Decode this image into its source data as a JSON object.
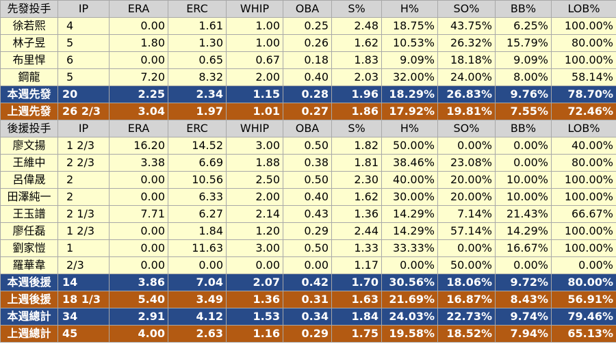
{
  "columns": [
    "IP",
    "ERA",
    "ERC",
    "WHIP",
    "OBA",
    "S%",
    "H%",
    "SO%",
    "BB%",
    "LOB%"
  ],
  "starters": {
    "header": "先發投手",
    "rows": [
      [
        "徐若熙",
        "4",
        "0.00",
        "1.61",
        "1.00",
        "0.25",
        "2.48",
        "18.75%",
        "43.75%",
        "6.25%",
        "100.00%"
      ],
      [
        "林子昱",
        "5",
        "1.80",
        "1.30",
        "1.00",
        "0.26",
        "1.62",
        "10.53%",
        "26.32%",
        "15.79%",
        "80.00%"
      ],
      [
        "布里悍",
        "6",
        "0.00",
        "0.65",
        "0.67",
        "0.18",
        "1.83",
        "9.09%",
        "18.18%",
        "9.09%",
        "100.00%"
      ],
      [
        "鋼龍",
        "5",
        "7.20",
        "8.32",
        "2.00",
        "0.40",
        "2.03",
        "32.00%",
        "24.00%",
        "8.00%",
        "58.14%"
      ]
    ],
    "this_week": [
      "本週先發",
      "20",
      "2.25",
      "2.34",
      "1.15",
      "0.28",
      "1.96",
      "18.29%",
      "26.83%",
      "9.76%",
      "78.70%"
    ],
    "last_week": [
      "上週先發",
      "26 2/3",
      "3.04",
      "1.97",
      "1.01",
      "0.27",
      "1.86",
      "17.92%",
      "19.81%",
      "7.55%",
      "72.46%"
    ]
  },
  "relievers": {
    "header": "後援投手",
    "rows": [
      [
        "廖文揚",
        "1 2/3",
        "16.20",
        "14.52",
        "3.00",
        "0.50",
        "1.82",
        "50.00%",
        "0.00%",
        "0.00%",
        "40.00%"
      ],
      [
        "王維中",
        "2 2/3",
        "3.38",
        "6.69",
        "1.88",
        "0.38",
        "1.81",
        "38.46%",
        "23.08%",
        "0.00%",
        "80.00%"
      ],
      [
        "呂偉晟",
        "2",
        "0.00",
        "10.56",
        "2.50",
        "0.50",
        "2.30",
        "40.00%",
        "20.00%",
        "10.00%",
        "100.00%"
      ],
      [
        "田澤純一",
        "2",
        "0.00",
        "6.33",
        "2.00",
        "0.40",
        "1.62",
        "30.00%",
        "20.00%",
        "10.00%",
        "100.00%"
      ],
      [
        "王玉譜",
        "2 1/3",
        "7.71",
        "6.27",
        "2.14",
        "0.43",
        "1.36",
        "14.29%",
        "7.14%",
        "21.43%",
        "66.67%"
      ],
      [
        "廖任磊",
        "1 2/3",
        "0.00",
        "1.84",
        "1.20",
        "0.29",
        "2.44",
        "14.29%",
        "57.14%",
        "14.29%",
        "100.00%"
      ],
      [
        "劉家愷",
        "1",
        "0.00",
        "11.63",
        "3.00",
        "0.50",
        "1.33",
        "33.33%",
        "0.00%",
        "16.67%",
        "100.00%"
      ],
      [
        "羅華韋",
        "2/3",
        "0.00",
        "0.00",
        "0.00",
        "0.00",
        "1.17",
        "0.00%",
        "50.00%",
        "0.00%",
        "0.00%"
      ]
    ],
    "this_week": [
      "本週後援",
      "14",
      "3.86",
      "7.04",
      "2.07",
      "0.42",
      "1.70",
      "30.56%",
      "18.06%",
      "9.72%",
      "80.00%"
    ],
    "last_week": [
      "上週後援",
      "18 1/3",
      "5.40",
      "3.49",
      "1.36",
      "0.31",
      "1.63",
      "21.69%",
      "16.87%",
      "8.43%",
      "56.91%"
    ]
  },
  "totals": {
    "this_week": [
      "本週總計",
      "34",
      "2.91",
      "4.12",
      "1.53",
      "0.34",
      "1.84",
      "24.03%",
      "22.73%",
      "9.74%",
      "79.46%"
    ],
    "last_week": [
      "上週總計",
      "45",
      "4.00",
      "2.63",
      "1.16",
      "0.29",
      "1.75",
      "19.58%",
      "18.52%",
      "7.94%",
      "65.13%"
    ]
  },
  "colors": {
    "header_bg": "#d4d4d4",
    "player_bg": "#fefece",
    "this_week_bg": "#284b89",
    "last_week_bg": "#b35a12"
  }
}
